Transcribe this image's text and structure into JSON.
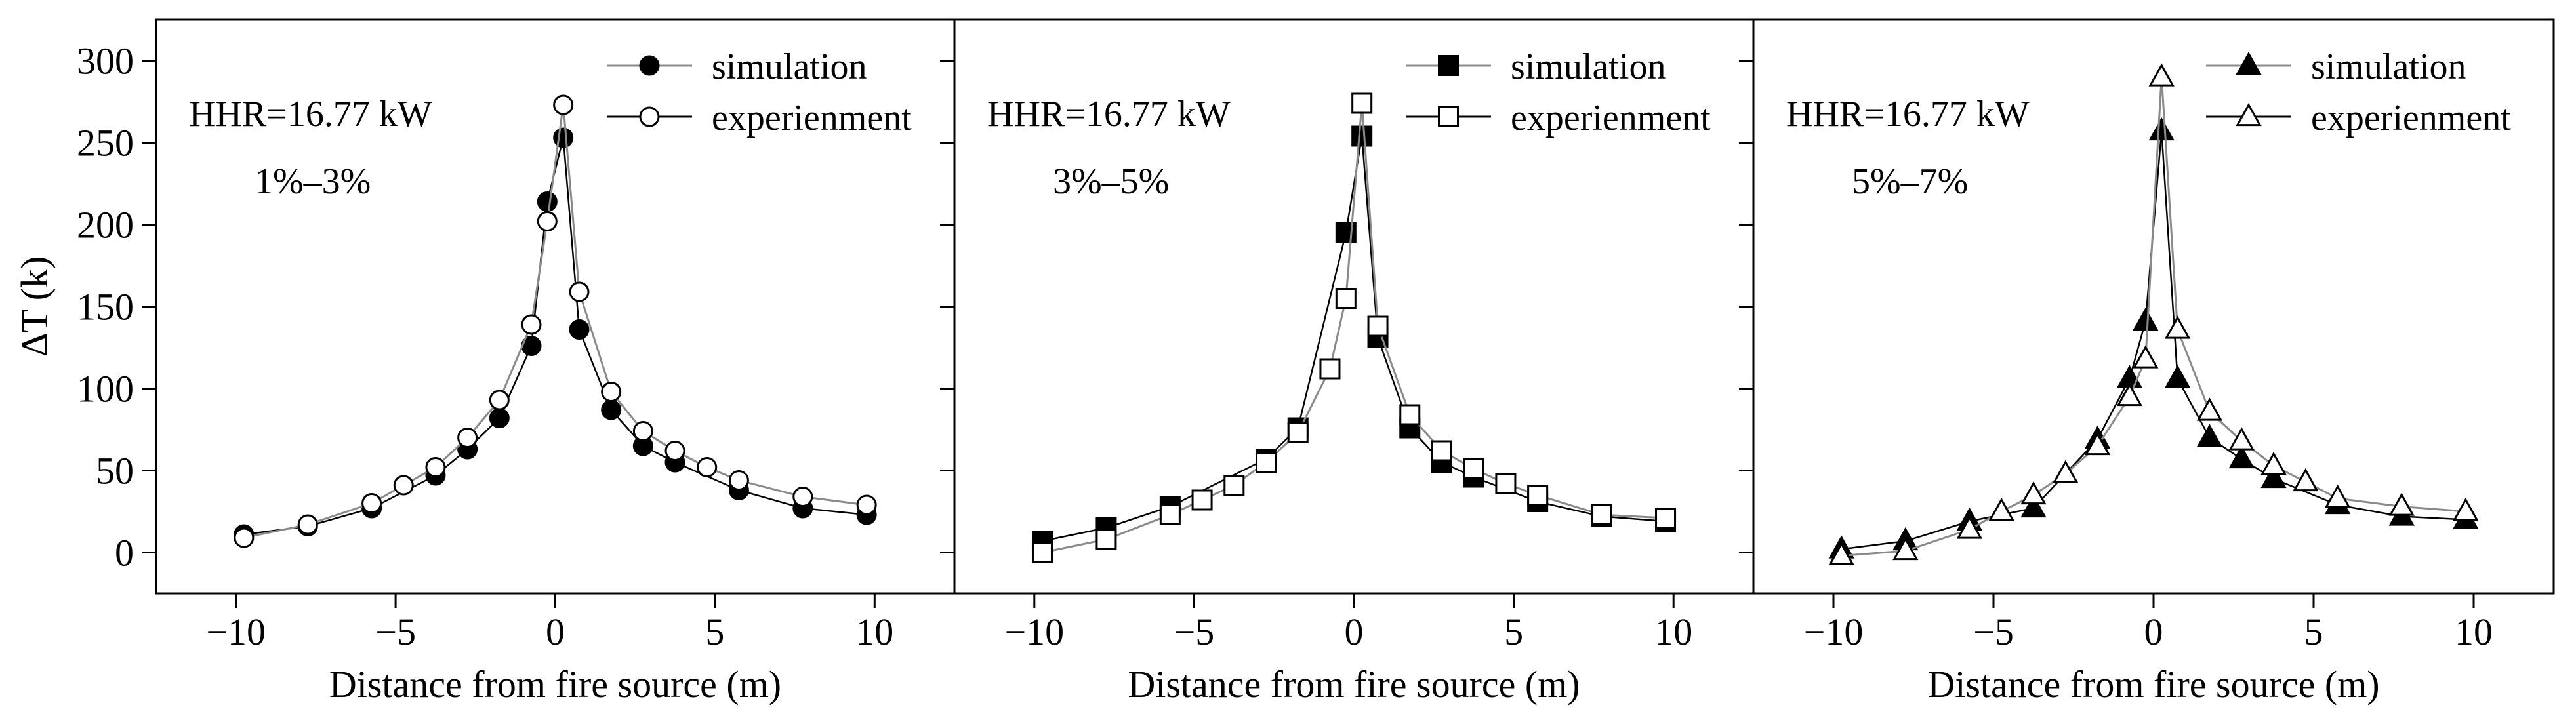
{
  "chart_data": [
    {
      "type": "line",
      "title": "",
      "xlabel": "Distance from fire source (m)",
      "ylabel": "ΔT (k)",
      "xlim": [
        -12.5,
        12.5
      ],
      "ylim": [
        -25,
        325
      ],
      "xticks": [
        -10,
        -5,
        0,
        5,
        10
      ],
      "yticks": [
        0,
        50,
        100,
        150,
        200,
        250,
        300
      ],
      "xtick_labels": [
        "−10",
        "−5",
        "0",
        "5",
        "10"
      ],
      "ytick_labels": [
        "0",
        "50",
        "100",
        "150",
        "200",
        "250",
        "300"
      ],
      "annotations": [
        "HHR=16.77 kW",
        "1%–3%"
      ],
      "legend": "top-right",
      "series": [
        {
          "name": "simulation",
          "marker": "circle-filled",
          "x": [
            -9.75,
            -7.75,
            -5.75,
            -3.75,
            -2.75,
            -1.75,
            -0.75,
            -0.25,
            0.25,
            0.75,
            1.75,
            2.75,
            3.75,
            5.75,
            7.75,
            9.75
          ],
          "y": [
            11,
            16,
            27,
            47,
            63,
            82,
            126,
            214,
            253,
            136,
            87,
            65,
            55,
            38,
            27,
            23
          ]
        },
        {
          "name": "experienment",
          "marker": "circle-open",
          "x": [
            -9.75,
            -7.75,
            -5.75,
            -4.75,
            -3.75,
            -2.75,
            -1.75,
            -0.75,
            -0.25,
            0.25,
            0.75,
            1.75,
            2.75,
            3.75,
            4.75,
            5.75,
            7.75,
            9.75
          ],
          "y": [
            9,
            17,
            30,
            41,
            52,
            70,
            93,
            139,
            202,
            273,
            159,
            98,
            74,
            62,
            52,
            44,
            34,
            29
          ]
        }
      ]
    },
    {
      "type": "line",
      "title": "",
      "xlabel": "Distance from fire source (m)",
      "ylabel": "",
      "xlim": [
        -12.5,
        12.5
      ],
      "ylim": [
        -25,
        325
      ],
      "xticks": [
        -10,
        -5,
        0,
        5,
        10
      ],
      "xtick_labels": [
        "−10",
        "−5",
        "0",
        "5",
        "10"
      ],
      "annotations": [
        "HHR=16.77 kW",
        "3%–5%"
      ],
      "legend": "top-right",
      "series": [
        {
          "name": "simulation",
          "marker": "square-filled",
          "x": [
            -9.75,
            -7.75,
            -5.75,
            -2.75,
            -1.75,
            -0.25,
            0.25,
            0.75,
            1.75,
            2.75,
            3.75,
            5.75,
            7.75,
            9.75
          ],
          "y": [
            7,
            15,
            28,
            57,
            76,
            195,
            254,
            131,
            76,
            55,
            46,
            31,
            22,
            19
          ]
        },
        {
          "name": "experienment",
          "marker": "square-open",
          "x": [
            -9.75,
            -7.75,
            -5.75,
            -4.75,
            -3.75,
            -2.75,
            -1.75,
            -0.75,
            -0.25,
            0.25,
            0.75,
            1.75,
            2.75,
            3.75,
            4.75,
            5.75,
            7.75,
            9.75
          ],
          "y": [
            0,
            8,
            23,
            32,
            41,
            55,
            73,
            112,
            155,
            274,
            138,
            84,
            62,
            51,
            42,
            35,
            23,
            21
          ]
        }
      ]
    },
    {
      "type": "line",
      "title": "",
      "xlabel": "Distance from fire source (m)",
      "ylabel": "",
      "xlim": [
        -12.5,
        12.5
      ],
      "ylim": [
        -25,
        325
      ],
      "xticks": [
        -10,
        -5,
        0,
        5,
        10
      ],
      "xtick_labels": [
        "−10",
        "−5",
        "0",
        "5",
        "10"
      ],
      "annotations": [
        "HHR=16.77 kW",
        "5%–7%"
      ],
      "legend": "top-right",
      "series": [
        {
          "name": "simulation",
          "marker": "triangle-filled",
          "x": [
            -9.75,
            -7.75,
            -5.75,
            -3.75,
            -1.75,
            -0.75,
            -0.25,
            0.25,
            0.75,
            1.75,
            2.75,
            3.75,
            5.75,
            7.75,
            9.75
          ],
          "y": [
            2,
            7,
            19,
            27,
            69,
            106,
            141,
            257,
            106,
            70,
            57,
            45,
            29,
            22,
            20
          ]
        },
        {
          "name": "experienment",
          "marker": "triangle-open",
          "x": [
            -9.75,
            -7.75,
            -5.75,
            -4.75,
            -3.75,
            -2.75,
            -1.75,
            -0.75,
            -0.25,
            0.25,
            0.75,
            1.75,
            2.75,
            3.75,
            4.75,
            5.75,
            7.75,
            9.75
          ],
          "y": [
            -2,
            1,
            14,
            25,
            35,
            48,
            65,
            95,
            118,
            290,
            136,
            86,
            68,
            53,
            43,
            33,
            28,
            25
          ]
        }
      ]
    }
  ]
}
